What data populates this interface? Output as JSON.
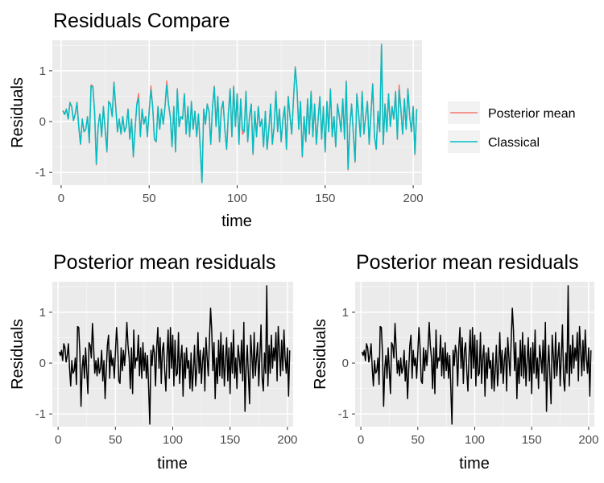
{
  "chart_data": [
    {
      "type": "line",
      "title": "Residuals Compare",
      "xlabel": "time",
      "ylabel": "Residuals",
      "xlim": [
        -5,
        205
      ],
      "ylim": [
        -1.25,
        1.6
      ],
      "xticks": [
        0,
        50,
        100,
        150,
        200
      ],
      "yticks": [
        -1,
        0,
        1
      ],
      "grid": true,
      "legend": {
        "position": "right",
        "entries": [
          "Posterior mean",
          "Classical"
        ]
      },
      "series": [
        {
          "name": "Posterior mean",
          "color": "#F8766D",
          "source": "residuals"
        },
        {
          "name": "Classical",
          "color": "#00BFC4",
          "source": "residuals_classical"
        }
      ]
    },
    {
      "type": "line",
      "title": "Posterior mean residuals",
      "xlabel": "time",
      "ylabel": "Residuals",
      "xlim": [
        -5,
        205
      ],
      "ylim": [
        -1.25,
        1.6
      ],
      "xticks": [
        0,
        50,
        100,
        150,
        200
      ],
      "yticks": [
        -1,
        0,
        1
      ],
      "grid": true,
      "series": [
        {
          "color": "#000000",
          "source": "residuals"
        }
      ]
    },
    {
      "type": "line",
      "title": "Posterior mean residuals",
      "xlabel": "time",
      "ylabel": "Residuals",
      "xlim": [
        -5,
        205
      ],
      "ylim": [
        -1.25,
        1.6
      ],
      "xticks": [
        0,
        50,
        100,
        150,
        200
      ],
      "yticks": [
        -1,
        0,
        1
      ],
      "grid": true,
      "series": [
        {
          "color": "#000000",
          "source": "residuals"
        }
      ]
    }
  ],
  "residuals": [
    0.22,
    0.15,
    0.25,
    0.05,
    0.38,
    0.3,
    0.02,
    0.15,
    0.38,
    -0.1,
    -0.45,
    0.05,
    -0.2,
    -0.15,
    0.1,
    -0.42,
    0.72,
    0.7,
    0.2,
    -0.85,
    -0.1,
    0.15,
    -0.3,
    0.3,
    -0.15,
    -0.6,
    0.4,
    0.35,
    0.1,
    0.78,
    0.3,
    -0.2,
    0.05,
    -0.25,
    0.1,
    -0.2,
    -0.1,
    0.25,
    -0.35,
    0.05,
    -0.7,
    -0.15,
    0.35,
    0.55,
    -0.3,
    0.25,
    -0.05,
    0.1,
    -0.3,
    0.2,
    0.7,
    0.3,
    -0.35,
    -0.4,
    0.3,
    -0.15,
    0.25,
    -0.05,
    0.3,
    0.8,
    0.35,
    0.1,
    -0.5,
    0.3,
    -0.6,
    0.65,
    -0.1,
    0.1,
    0.05,
    0.55,
    -0.25,
    0.3,
    -0.3,
    0.4,
    -0.15,
    0.2,
    -0.3,
    0.15,
    -0.5,
    -1.2,
    0.25,
    -0.05,
    0.35,
    0.2,
    -0.45,
    0.3,
    0.7,
    -0.1,
    0.5,
    -0.4,
    0.25,
    0.4,
    -0.15,
    -0.55,
    0.15,
    0.65,
    -0.3,
    0.7,
    -0.1,
    0.55,
    -0.45,
    0.45,
    -0.25,
    -0.2,
    0.6,
    -0.4,
    0.1,
    0.35,
    -0.65,
    0.2,
    -0.3,
    0.3,
    -0.1,
    0.05,
    -0.5,
    0.2,
    -0.55,
    -0.15,
    0.35,
    -0.45,
    -0.1,
    0.6,
    -0.2,
    0.25,
    -0.4,
    0.05,
    0.3,
    -0.55,
    0.5,
    0.1,
    -0.25,
    0.45,
    1.08,
    0.65,
    -0.15,
    0.4,
    -0.7,
    0.1,
    -0.4,
    0.45,
    -0.25,
    0.6,
    -0.3,
    0.35,
    -0.45,
    0.05,
    0.5,
    -0.35,
    0.3,
    -0.6,
    0.4,
    -0.2,
    0.65,
    -0.3,
    0.1,
    -0.5,
    0.35,
    0.1,
    -0.2,
    0.45,
    -0.35,
    0.8,
    -0.95,
    -0.1,
    0.35,
    -0.25,
    -0.8,
    0.55,
    0.15,
    -0.3,
    0.6,
    -0.25,
    0.1,
    0.4,
    -0.45,
    0.15,
    0.75,
    -0.3,
    -0.55,
    0.2,
    -0.2,
    1.52,
    -0.45,
    0.35,
    -0.2,
    0.55,
    -0.1,
    0.3,
    0.05,
    0.6,
    -0.35,
    0.72,
    0.25,
    -0.25,
    0.45,
    -0.15,
    0.65,
    0.1,
    -0.2,
    0.3,
    -0.65,
    0.25
  ],
  "residuals_classical": [
    0.21,
    0.14,
    0.24,
    0.05,
    0.37,
    0.29,
    0.02,
    0.15,
    0.37,
    -0.1,
    -0.44,
    0.05,
    -0.2,
    -0.15,
    0.1,
    -0.41,
    0.7,
    0.68,
    0.2,
    -0.83,
    -0.1,
    0.15,
    -0.29,
    0.29,
    -0.15,
    -0.58,
    0.39,
    0.34,
    0.1,
    0.76,
    0.29,
    -0.2,
    0.05,
    -0.24,
    0.1,
    -0.2,
    -0.1,
    0.24,
    -0.34,
    0.05,
    -0.68,
    -0.15,
    0.34,
    0.45,
    -0.29,
    0.24,
    -0.05,
    0.1,
    -0.29,
    0.2,
    0.62,
    0.29,
    -0.34,
    -0.39,
    0.29,
    -0.15,
    0.24,
    -0.05,
    0.29,
    0.72,
    0.34,
    0.1,
    -0.49,
    0.29,
    -0.58,
    0.63,
    -0.1,
    0.1,
    0.05,
    0.54,
    -0.24,
    0.29,
    -0.29,
    0.39,
    -0.15,
    0.2,
    -0.29,
    0.15,
    -0.49,
    -1.2,
    0.24,
    -0.05,
    0.34,
    0.2,
    -0.44,
    0.29,
    0.68,
    -0.1,
    0.49,
    -0.39,
    0.24,
    0.39,
    -0.15,
    -0.54,
    0.15,
    0.63,
    -0.29,
    0.68,
    -0.1,
    0.54,
    -0.44,
    0.44,
    -0.15,
    -0.2,
    0.58,
    -0.39,
    0.1,
    0.34,
    -0.63,
    0.2,
    -0.29,
    0.29,
    -0.1,
    0.05,
    -0.49,
    0.2,
    -0.54,
    -0.15,
    0.34,
    -0.44,
    -0.1,
    0.58,
    -0.2,
    0.24,
    -0.39,
    0.05,
    0.29,
    -0.54,
    0.49,
    0.1,
    -0.24,
    0.44,
    1.06,
    0.63,
    -0.15,
    0.39,
    -0.68,
    0.1,
    -0.39,
    0.44,
    -0.24,
    0.58,
    -0.29,
    0.34,
    -0.44,
    0.05,
    0.49,
    -0.34,
    0.29,
    -0.58,
    0.39,
    -0.2,
    0.63,
    -0.29,
    0.1,
    -0.49,
    0.34,
    0.1,
    -0.2,
    0.44,
    -0.34,
    0.78,
    -0.93,
    -0.1,
    0.34,
    -0.24,
    -0.78,
    0.54,
    0.15,
    -0.29,
    0.58,
    -0.24,
    0.1,
    0.39,
    -0.44,
    0.15,
    0.73,
    -0.29,
    -0.54,
    0.2,
    -0.2,
    1.52,
    -0.44,
    0.34,
    -0.2,
    0.54,
    -0.1,
    0.29,
    0.05,
    0.58,
    -0.34,
    0.62,
    0.24,
    -0.24,
    0.44,
    -0.15,
    0.63,
    0.1,
    -0.2,
    0.29,
    -0.63,
    0.24
  ]
}
